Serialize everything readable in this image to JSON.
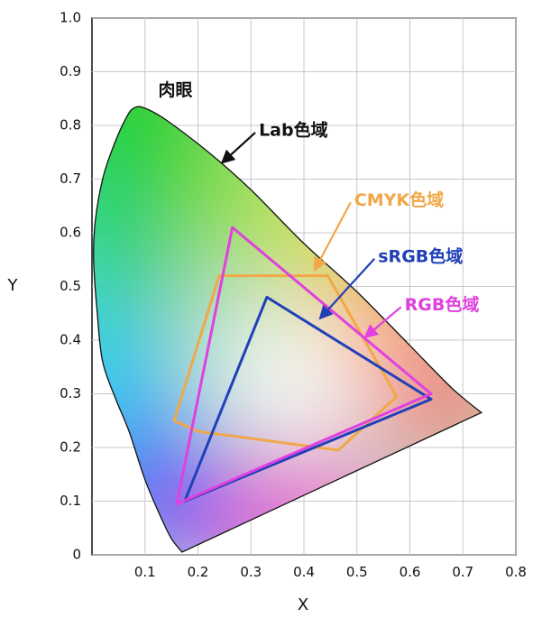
{
  "chart_data": {
    "type": "scatter",
    "xlabel": "X",
    "ylabel": "Y",
    "xlim": [
      0,
      0.8
    ],
    "ylim": [
      0,
      1.0
    ],
    "grid": true,
    "x_ticks": [
      {
        "value": 0.1,
        "label": "0.1"
      },
      {
        "value": 0.2,
        "label": "0.2"
      },
      {
        "value": 0.3,
        "label": "0.3"
      },
      {
        "value": 0.4,
        "label": "0.4"
      },
      {
        "value": 0.5,
        "label": "0.5"
      },
      {
        "value": 0.6,
        "label": "0.6"
      },
      {
        "value": 0.7,
        "label": "0.7"
      },
      {
        "value": 0.8,
        "label": "0.8"
      }
    ],
    "y_ticks": [
      {
        "value": 0.0,
        "label": "0"
      },
      {
        "value": 0.1,
        "label": "0.1"
      },
      {
        "value": 0.2,
        "label": "0.2"
      },
      {
        "value": 0.3,
        "label": "0.3"
      },
      {
        "value": 0.4,
        "label": "0.4"
      },
      {
        "value": 0.5,
        "label": "0.5"
      },
      {
        "value": 0.6,
        "label": "0.6"
      },
      {
        "value": 0.7,
        "label": "0.7"
      },
      {
        "value": 0.8,
        "label": "0.8"
      },
      {
        "value": 0.9,
        "label": "0.9"
      },
      {
        "value": 1.0,
        "label": "1.0"
      }
    ],
    "locus": [
      [
        0.17,
        0.005
      ],
      [
        0.15,
        0.03
      ],
      [
        0.13,
        0.07
      ],
      [
        0.1,
        0.14
      ],
      [
        0.07,
        0.23
      ],
      [
        0.045,
        0.29
      ],
      [
        0.02,
        0.36
      ],
      [
        0.01,
        0.45
      ],
      [
        0.003,
        0.55
      ],
      [
        0.006,
        0.62
      ],
      [
        0.02,
        0.7
      ],
      [
        0.04,
        0.76
      ],
      [
        0.065,
        0.815
      ],
      [
        0.08,
        0.833
      ],
      [
        0.1,
        0.832
      ],
      [
        0.14,
        0.81
      ],
      [
        0.22,
        0.75
      ],
      [
        0.3,
        0.68
      ],
      [
        0.4,
        0.58
      ],
      [
        0.5,
        0.49
      ],
      [
        0.6,
        0.39
      ],
      [
        0.68,
        0.31
      ],
      [
        0.735,
        0.265
      ]
    ],
    "polygons": [
      {
        "name": "CMYK",
        "color": "#f0a848",
        "points": [
          [
            0.155,
            0.25
          ],
          [
            0.24,
            0.52
          ],
          [
            0.445,
            0.52
          ],
          [
            0.575,
            0.295
          ],
          [
            0.465,
            0.195
          ],
          [
            0.2,
            0.23
          ]
        ]
      },
      {
        "name": "sRGB",
        "color": "#2040b8",
        "points": [
          [
            0.33,
            0.48
          ],
          [
            0.64,
            0.29
          ],
          [
            0.175,
            0.1
          ]
        ]
      },
      {
        "name": "RGB",
        "color": "#e040e0",
        "points": [
          [
            0.265,
            0.61
          ],
          [
            0.64,
            0.3
          ],
          [
            0.16,
            0.095
          ]
        ]
      }
    ],
    "annotations": [
      {
        "text": "肉眼",
        "color": "#111111",
        "at": [
          0.125,
          0.865
        ]
      },
      {
        "text": "Lab色域",
        "color": "#111111",
        "at": [
          0.315,
          0.79
        ],
        "arrow_to": [
          0.245,
          0.73
        ]
      },
      {
        "text": "CMYK色域",
        "color": "#f0a848",
        "at": [
          0.495,
          0.66
        ],
        "arrow_to": [
          0.42,
          0.53
        ]
      },
      {
        "text": "sRGB色域",
        "color": "#2040b8",
        "at": [
          0.54,
          0.555
        ],
        "arrow_to": [
          0.43,
          0.44
        ]
      },
      {
        "text": "RGB色域",
        "color": "#e040e0",
        "at": [
          0.59,
          0.465
        ],
        "arrow_to": [
          0.515,
          0.405
        ]
      }
    ]
  }
}
